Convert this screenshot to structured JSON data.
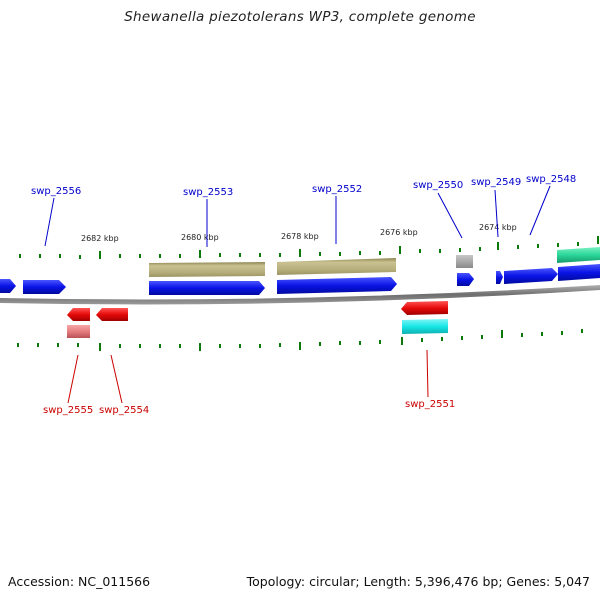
{
  "title": "Shewanella piezotolerans WP3, complete genome",
  "footer": {
    "accession": "Accession: NC_011566",
    "summary": "Topology: circular; Length: 5,396,476 bp; Genes: 5,047"
  },
  "scale_labels": [
    "2682 kbp",
    "2680 kbp",
    "2678 kbp",
    "2676 kbp",
    "2674 kbp"
  ],
  "forward_gene_labels": [
    "swp_2556",
    "swp_2553",
    "swp_2552",
    "swp_2550",
    "swp_2549",
    "swp_2548"
  ],
  "reverse_gene_labels": [
    "swp_2555",
    "swp_2554",
    "swp_2551"
  ],
  "colors": {
    "cds_forward": "#0a14e6",
    "cds_reverse": "#e60a0a",
    "cds_reverse_light": "#e57d80",
    "olive_feature": "#b5ad7a",
    "gray_feature": "#a8a8a8",
    "cyan_feature": "#18e6e6",
    "green_feature": "#2ad69a",
    "tick": "#0b7a0b",
    "backbone": "#7a7a7a"
  }
}
